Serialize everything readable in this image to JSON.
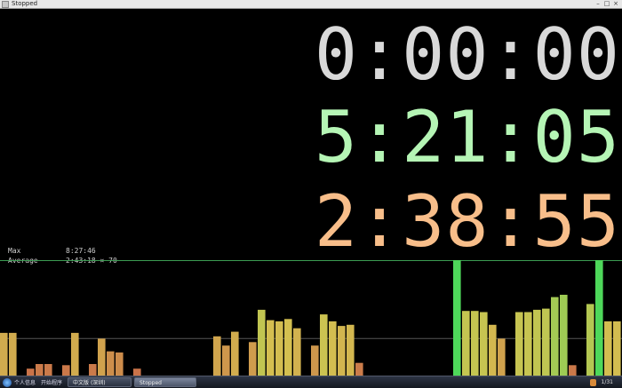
{
  "window": {
    "title": "Stopped"
  },
  "timers": {
    "current": "0:00:00",
    "best": "5:21:05",
    "elapsed": "2:38:55"
  },
  "stats": [
    {
      "label": "Max",
      "value": "8:27:46"
    },
    {
      "label": "Average",
      "value": "2:43:18 × 70"
    }
  ],
  "graph": {
    "max_seconds": 30466,
    "average_seconds": 9798,
    "gradient_colors": [
      "#c86848",
      "#d4c250",
      "#4ed85a"
    ],
    "bars": [
      0.37,
      0.37,
      0,
      0.06,
      0.1,
      0.1,
      0,
      0.09,
      0.37,
      0,
      0.1,
      0.32,
      0.21,
      0.2,
      0,
      0.06,
      0,
      0,
      0,
      0,
      0,
      0,
      0,
      0,
      0.34,
      0.26,
      0.38,
      0,
      0.29,
      0.57,
      0.48,
      0.47,
      0.49,
      0.41,
      0,
      0.26,
      0.53,
      0.47,
      0.43,
      0.44,
      0.11,
      0,
      0,
      0,
      0,
      0,
      0,
      0,
      0,
      0,
      0,
      1.0,
      0.56,
      0.56,
      0.55,
      0.44,
      0.32,
      0,
      0.55,
      0.55,
      0.57,
      0.58,
      0.68,
      0.7,
      0.09,
      0,
      0.62,
      1.0,
      0.47,
      0.47
    ]
  },
  "taskbar": {
    "quick_launch": [
      "个人信息",
      "开始程序"
    ],
    "buttons": [
      {
        "label": "中文版 (深圳)",
        "active": false
      },
      {
        "label": "Stopped",
        "active": true
      }
    ],
    "clock": "1/31"
  }
}
